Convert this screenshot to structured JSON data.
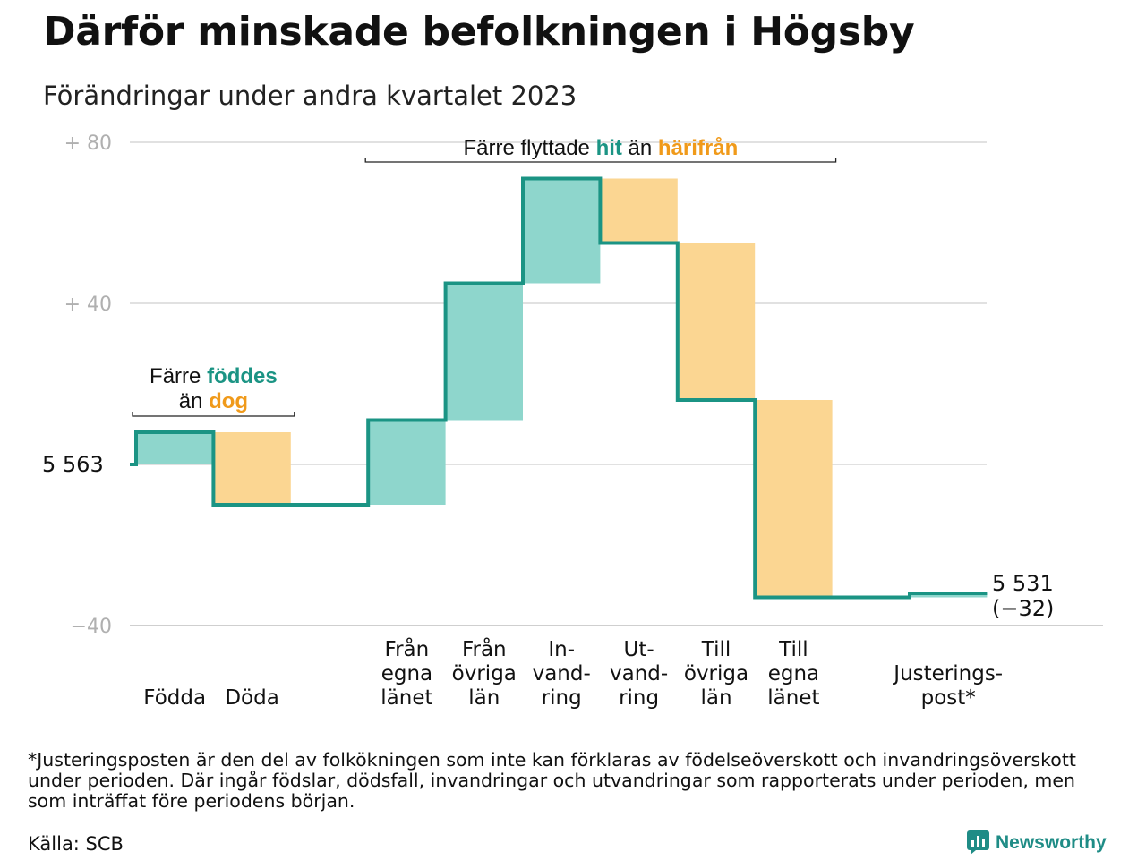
{
  "title": "Därför minskade befolkningen i Högsby",
  "subtitle": "Förändringar under andra kvartalet 2023",
  "footnote": "*Justeringsposten är den del av folkökningen som inte kan förklaras av födelseöverskott och invandringsöverskott under perioden. Där ingår födslar, dödsfall, invandringar och utvandringar som rapporterats under perioden, men som inträffat före periodens början.",
  "source": "Källa: SCB",
  "brand": "Newsworthy",
  "colors": {
    "increase": "#8ed6cc",
    "decrease": "#fbd692",
    "line": "#1b9484",
    "teal_text": "#1b9484",
    "orange_text": "#f09a1a",
    "grid": "#e1e1e1"
  },
  "chart_data": {
    "type": "waterfall",
    "start_value": 5563,
    "start_label": "5  563",
    "end_value": 5531,
    "end_label": "5 531",
    "end_change_label": "(−32)",
    "y_ticks": [
      {
        "value": 80,
        "label": "+  80"
      },
      {
        "value": 40,
        "label": "+  40"
      },
      {
        "value": 0,
        "label": ""
      },
      {
        "value": -40,
        "label": "−40"
      }
    ],
    "ylim": [
      -40,
      80
    ],
    "steps": [
      {
        "label": [
          "Födda"
        ],
        "change": 8
      },
      {
        "label": [
          "Döda"
        ],
        "change": -18
      },
      {
        "label": [],
        "change": 0
      },
      {
        "label": [
          "Från",
          "egna",
          "länet"
        ],
        "change": 21
      },
      {
        "label": [
          "Från",
          "övriga",
          "län"
        ],
        "change": 34
      },
      {
        "label": [
          "In-",
          "vand-",
          "ring"
        ],
        "change": 26
      },
      {
        "label": [
          "Ut-",
          "vand-",
          "ring"
        ],
        "change": -16
      },
      {
        "label": [
          "Till",
          "övriga",
          "län"
        ],
        "change": -39
      },
      {
        "label": [
          "Till",
          "egna",
          "länet"
        ],
        "change": -49
      },
      {
        "label": [],
        "change": 0
      },
      {
        "label": [
          "Justerings-",
          "post*"
        ],
        "change": 1
      }
    ],
    "annotations": [
      {
        "lines": [
          [
            {
              "text": "Färre ",
              "style": "plain"
            },
            {
              "text": "föddes",
              "style": "teal"
            }
          ],
          [
            {
              "text": "än ",
              "style": "plain"
            },
            {
              "text": "dog",
              "style": "orange"
            }
          ]
        ],
        "span": [
          0,
          1
        ]
      },
      {
        "lines": [
          [
            {
              "text": "Färre flyttade ",
              "style": "plain"
            },
            {
              "text": "hit",
              "style": "teal"
            },
            {
              "text": "  än ",
              "style": "plain"
            },
            {
              "text": "härifrån",
              "style": "orange"
            }
          ]
        ],
        "span": [
          3,
          8
        ]
      }
    ]
  }
}
